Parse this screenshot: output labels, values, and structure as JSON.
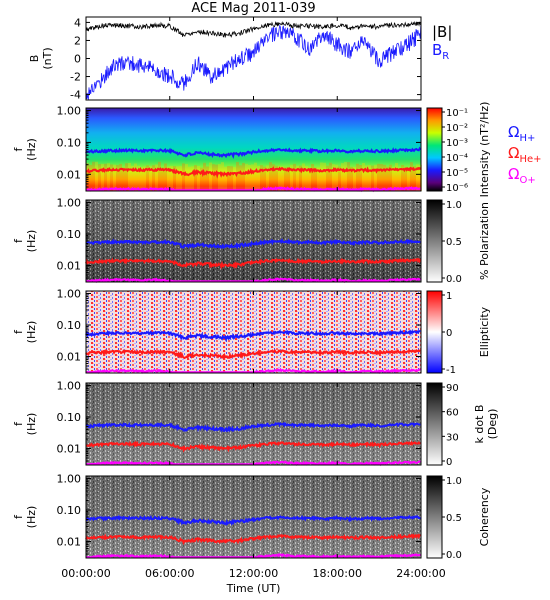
{
  "title": "ACE Mag 2011-039",
  "colors": {
    "total_field": "#000000",
    "radial_field": "#1a1aff",
    "h_plus": "#1a1aff",
    "he_plus": "#ff1a1a",
    "o_plus": "#ff00ff",
    "axis": "#000000"
  },
  "chart_data": [
    {
      "id": "field",
      "type": "line",
      "ylabel_top": "B",
      "ylabel_bottom": "(nT)",
      "ylim": [
        -4.6,
        4.6
      ],
      "yticks": [
        "4",
        "2",
        "0",
        "-2",
        "-4"
      ],
      "ytick_values": [
        4,
        2,
        0,
        -2,
        -4
      ],
      "legend": [
        {
          "main": "|B|",
          "sub": "",
          "color": "#000000"
        },
        {
          "main": "B",
          "sub": "R",
          "color": "#1a1aff"
        }
      ],
      "x_hours": [
        0,
        1,
        2,
        3,
        4,
        5,
        6,
        7,
        8,
        9,
        10,
        11,
        12,
        13,
        14,
        15,
        16,
        17,
        18,
        19,
        20,
        21,
        22,
        23,
        24
      ],
      "series": [
        {
          "key": "B_total",
          "values": [
            3.2,
            3.6,
            3.7,
            3.6,
            3.5,
            3.7,
            3.6,
            2.6,
            3.0,
            2.8,
            2.6,
            2.8,
            3.3,
            3.7,
            3.9,
            3.6,
            3.6,
            3.5,
            3.7,
            3.4,
            3.6,
            3.5,
            3.7,
            3.8,
            3.9
          ]
        },
        {
          "key": "B_R",
          "values": [
            -4.0,
            -2.5,
            -0.8,
            -0.4,
            -0.8,
            -1.2,
            -2.0,
            -2.8,
            -0.5,
            -2.0,
            -1.0,
            0.0,
            0.6,
            2.4,
            2.8,
            2.5,
            1.0,
            2.6,
            1.5,
            0.6,
            2.0,
            -0.5,
            0.7,
            1.5,
            2.8
          ]
        }
      ]
    },
    {
      "id": "intensity",
      "type": "heatmap",
      "ylabel_top": "f",
      "ylabel_bottom": "(Hz)",
      "yticks": [
        "1.00",
        "0.10",
        "0.01"
      ],
      "colorbar": {
        "label": "Intensity (nT²/Hz)",
        "ticks": [
          "10⁻¹",
          "10⁻²",
          "10⁻³",
          "10⁻⁴",
          "10⁻⁵",
          "10⁻⁶"
        ]
      },
      "legend": [
        {
          "main": "Ω",
          "sub": "H+",
          "color": "#1a1aff"
        },
        {
          "main": "Ω",
          "sub": "He+",
          "color": "#ff1a1a"
        },
        {
          "main": "Ω",
          "sub": "O+",
          "color": "#ff00ff"
        }
      ]
    },
    {
      "id": "polarization",
      "type": "heatmap",
      "ylabel_top": "f",
      "ylabel_bottom": "(Hz)",
      "yticks": [
        "1.00",
        "0.10",
        "0.01"
      ],
      "colorbar": {
        "label": "% Polarization",
        "ticks": [
          "1.0",
          "0.5",
          "0.0"
        ]
      }
    },
    {
      "id": "ellipticity",
      "type": "heatmap",
      "ylabel_top": "f",
      "ylabel_bottom": "(Hz)",
      "yticks": [
        "1.00",
        "0.10",
        "0.01"
      ],
      "colorbar": {
        "label": "Ellipticity",
        "ticks": [
          "1",
          "0",
          "-1"
        ]
      }
    },
    {
      "id": "kdotb",
      "type": "heatmap",
      "ylabel_top": "f",
      "ylabel_bottom": "(Hz)",
      "yticks": [
        "1.00",
        "0.10",
        "0.01"
      ],
      "colorbar": {
        "label": "k dot B",
        "label2": "(Deg)",
        "ticks": [
          "90",
          "60",
          "30",
          "0"
        ]
      }
    },
    {
      "id": "coherency",
      "type": "heatmap",
      "ylabel_top": "f",
      "ylabel_bottom": "(Hz)",
      "yticks": [
        "1.00",
        "0.10",
        "0.01"
      ],
      "colorbar": {
        "label": "Coherency",
        "ticks": [
          "1.0",
          "0.5",
          "0.0"
        ]
      }
    }
  ],
  "gyrofrequency": {
    "x_hours": [
      0,
      1,
      2,
      3,
      4,
      5,
      6,
      7,
      8,
      9,
      10,
      11,
      12,
      13,
      14,
      15,
      16,
      17,
      18,
      19,
      20,
      21,
      22,
      23,
      24
    ],
    "h_plus_hz": [
      0.05,
      0.054,
      0.056,
      0.056,
      0.055,
      0.056,
      0.055,
      0.04,
      0.046,
      0.043,
      0.04,
      0.043,
      0.05,
      0.056,
      0.059,
      0.055,
      0.055,
      0.053,
      0.056,
      0.052,
      0.055,
      0.053,
      0.056,
      0.058,
      0.06
    ],
    "he_plus_hz": [
      0.0125,
      0.0135,
      0.014,
      0.014,
      0.0137,
      0.014,
      0.0137,
      0.01,
      0.0115,
      0.0107,
      0.01,
      0.0107,
      0.0125,
      0.014,
      0.0147,
      0.0137,
      0.0137,
      0.0132,
      0.014,
      0.013,
      0.0137,
      0.0132,
      0.014,
      0.0145,
      0.015
    ],
    "o_plus_hz": [
      0.0031,
      0.0034,
      0.0035,
      0.0035,
      0.0034,
      0.0035,
      0.0034,
      0.0025,
      0.0029,
      0.0027,
      0.0025,
      0.0027,
      0.0031,
      0.0035,
      0.0037,
      0.0034,
      0.0034,
      0.0033,
      0.0035,
      0.0032,
      0.0034,
      0.0033,
      0.0035,
      0.0036,
      0.0037
    ]
  },
  "x_axis": {
    "ticks": [
      "00:00:00",
      "06:00:00",
      "12:00:00",
      "18:00:00",
      "24:00:00"
    ],
    "tick_hours": [
      0,
      6,
      12,
      18,
      24
    ],
    "label": "Time (UT)"
  }
}
